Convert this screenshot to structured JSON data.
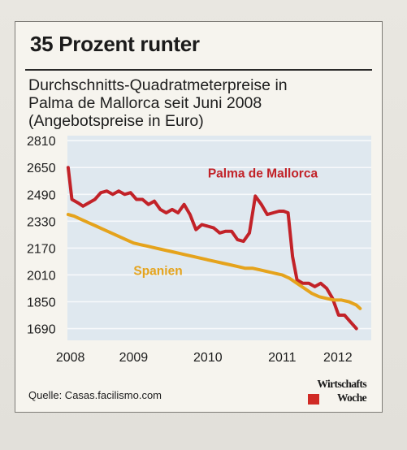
{
  "headline": "35 Prozent runter",
  "subtitle": {
    "line1": "Durchschnitts-Quadratmeterpreise in",
    "line2": "Palma de Mallorca seit Juni 2008",
    "line3": "(Angebotspreise in Euro)"
  },
  "source": "Quelle: Casas.facilismo.com",
  "logo": {
    "line1": "Wirtschafts",
    "line2": "Woche"
  },
  "colors": {
    "palma": "#c22228",
    "spanien": "#e5a31c",
    "plot_bg": "#dfe8ef",
    "grid": "#f7f9fb",
    "label": "#1c1c1c"
  },
  "chart_data": {
    "type": "line",
    "y_ticks": [
      1690,
      1850,
      2010,
      2170,
      2330,
      2490,
      2650,
      2810
    ],
    "x_tick_labels": [
      {
        "label": "2008",
        "t": 2008.45
      },
      {
        "label": "2009",
        "t": 2009.3
      },
      {
        "label": "2010",
        "t": 2010.3
      },
      {
        "label": "2011",
        "t": 2011.3
      },
      {
        "label": "2012",
        "t": 2012.05
      }
    ],
    "xlim": [
      2008.41,
      2012.5
    ],
    "ylim": [
      1620,
      2840
    ],
    "grid": true,
    "series": [
      {
        "name": "Palma de Mallorca",
        "color_key": "palma",
        "label_t": 2010.3,
        "label_v": 2590,
        "x": [
          2008.42,
          2008.47,
          2008.55,
          2008.62,
          2008.7,
          2008.78,
          2008.86,
          2008.94,
          2009.02,
          2009.1,
          2009.18,
          2009.26,
          2009.34,
          2009.42,
          2009.5,
          2009.58,
          2009.66,
          2009.74,
          2009.82,
          2009.9,
          2009.98,
          2010.06,
          2010.14,
          2010.22,
          2010.3,
          2010.38,
          2010.46,
          2010.54,
          2010.62,
          2010.7,
          2010.78,
          2010.86,
          2010.94,
          2011.02,
          2011.1,
          2011.18,
          2011.26,
          2011.32,
          2011.38,
          2011.44,
          2011.5,
          2011.58,
          2011.66,
          2011.74,
          2011.82,
          2011.9,
          2011.98,
          2012.06,
          2012.14,
          2012.22,
          2012.3
        ],
        "y": [
          2650,
          2460,
          2440,
          2420,
          2440,
          2460,
          2500,
          2510,
          2490,
          2510,
          2490,
          2500,
          2460,
          2460,
          2430,
          2450,
          2400,
          2380,
          2400,
          2380,
          2430,
          2370,
          2280,
          2310,
          2300,
          2290,
          2260,
          2270,
          2270,
          2220,
          2210,
          2260,
          2480,
          2430,
          2370,
          2380,
          2390,
          2390,
          2380,
          2120,
          1980,
          1960,
          1960,
          1940,
          1960,
          1930,
          1870,
          1770,
          1770,
          1730,
          1690
        ]
      },
      {
        "name": "Spanien",
        "color_key": "spanien",
        "label_t": 2009.3,
        "label_v": 2010,
        "x": [
          2008.42,
          2008.5,
          2008.6,
          2008.7,
          2008.8,
          2008.9,
          2009.0,
          2009.1,
          2009.2,
          2009.3,
          2009.4,
          2009.5,
          2009.6,
          2009.7,
          2009.8,
          2009.9,
          2010.0,
          2010.1,
          2010.2,
          2010.3,
          2010.4,
          2010.5,
          2010.6,
          2010.7,
          2010.8,
          2010.9,
          2011.0,
          2011.1,
          2011.2,
          2011.3,
          2011.4,
          2011.5,
          2011.6,
          2011.7,
          2011.8,
          2011.9,
          2012.0,
          2012.1,
          2012.2,
          2012.3,
          2012.35
        ],
        "y": [
          2370,
          2360,
          2340,
          2320,
          2300,
          2280,
          2260,
          2240,
          2220,
          2200,
          2190,
          2180,
          2170,
          2160,
          2150,
          2140,
          2130,
          2120,
          2110,
          2100,
          2090,
          2080,
          2070,
          2060,
          2050,
          2050,
          2040,
          2030,
          2020,
          2010,
          1990,
          1960,
          1930,
          1900,
          1880,
          1870,
          1860,
          1860,
          1850,
          1830,
          1810
        ]
      }
    ]
  }
}
